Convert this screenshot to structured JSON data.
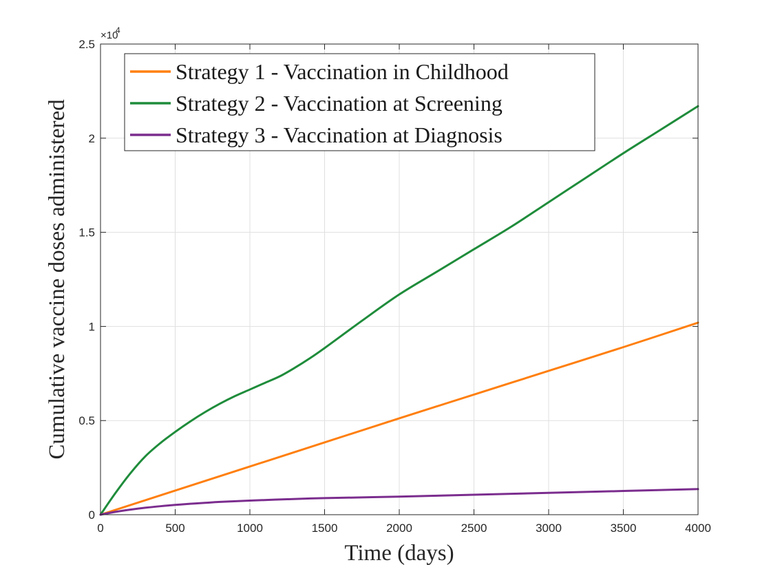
{
  "chart_data": {
    "type": "line",
    "xlabel": "Time (days)",
    "ylabel": "Cumulative vaccine doses administered",
    "xlim": [
      0,
      4000
    ],
    "ylim": [
      0,
      25000
    ],
    "x_ticks": [
      0,
      500,
      1000,
      1500,
      2000,
      2500,
      3000,
      3500,
      4000
    ],
    "x_tick_labels": [
      "0",
      "500",
      "1000",
      "1500",
      "2000",
      "2500",
      "3000",
      "3500",
      "4000"
    ],
    "y_ticks": [
      0,
      5000,
      10000,
      15000,
      20000,
      25000
    ],
    "y_tick_labels": [
      "0",
      "0.5",
      "1",
      "1.5",
      "2",
      "2.5"
    ],
    "y_multiplier_base": "×10",
    "y_multiplier_exp": "4",
    "grid": true,
    "legend_position": "top-left",
    "series": [
      {
        "name": "Strategy 1 - Vaccination in Childhood",
        "color": "#ff7f0e",
        "x": [
          0,
          500,
          1000,
          1500,
          2000,
          2500,
          3000,
          3500,
          4000
        ],
        "values": [
          0,
          1280,
          2560,
          3840,
          5120,
          6380,
          7640,
          8900,
          10200
        ]
      },
      {
        "name": "Strategy 2 - Vaccination at Screening",
        "color": "#1f8c3b",
        "x": [
          0,
          100,
          200,
          300,
          400,
          500,
          600,
          700,
          800,
          900,
          1000,
          1100,
          1200,
          1300,
          1400,
          1500,
          1750,
          2000,
          2250,
          2500,
          2750,
          3000,
          3250,
          3500,
          3750,
          4000
        ],
        "values": [
          0,
          1150,
          2200,
          3100,
          3800,
          4400,
          4950,
          5450,
          5900,
          6300,
          6650,
          7000,
          7350,
          7800,
          8300,
          8850,
          10300,
          11700,
          12900,
          14100,
          15300,
          16600,
          17900,
          19200,
          20450,
          21700
        ]
      },
      {
        "name": "Strategy 3 - Vaccination at Diagnosis",
        "color": "#7b2d8e",
        "x": [
          0,
          100,
          200,
          300,
          400,
          500,
          600,
          700,
          800,
          1000,
          1250,
          1500,
          2000,
          2500,
          3000,
          3500,
          4000
        ],
        "values": [
          0,
          150,
          270,
          370,
          450,
          520,
          580,
          630,
          680,
          750,
          820,
          880,
          960,
          1060,
          1160,
          1260,
          1360
        ]
      }
    ]
  }
}
